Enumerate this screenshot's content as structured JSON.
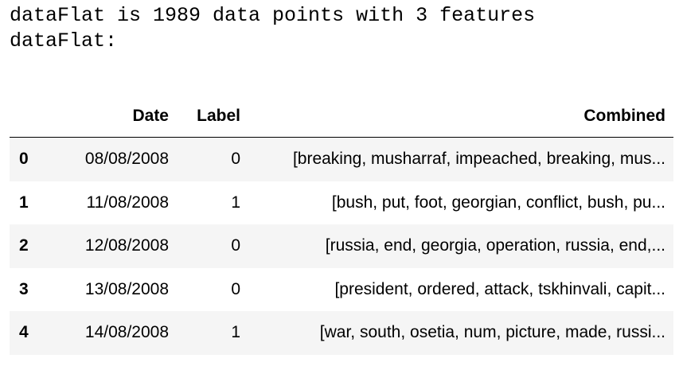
{
  "output": {
    "line1": "dataFlat is 1989 data points with 3 features",
    "line2": "dataFlat:"
  },
  "table": {
    "columns": {
      "index": "",
      "date": "Date",
      "label": "Label",
      "combined": "Combined"
    },
    "rows": [
      {
        "index": "0",
        "date": "08/08/2008",
        "label": "0",
        "combined": "[breaking, musharraf, impeached, breaking, mus..."
      },
      {
        "index": "1",
        "date": "11/08/2008",
        "label": "1",
        "combined": "[bush, put, foot, georgian, conflict, bush, pu..."
      },
      {
        "index": "2",
        "date": "12/08/2008",
        "label": "0",
        "combined": "[russia, end, georgia, operation, russia, end,..."
      },
      {
        "index": "3",
        "date": "13/08/2008",
        "label": "0",
        "combined": "[president, ordered, attack, tskhinvali, capit..."
      },
      {
        "index": "4",
        "date": "14/08/2008",
        "label": "1",
        "combined": "[war, south, osetia, num, picture, made, russi..."
      }
    ]
  }
}
